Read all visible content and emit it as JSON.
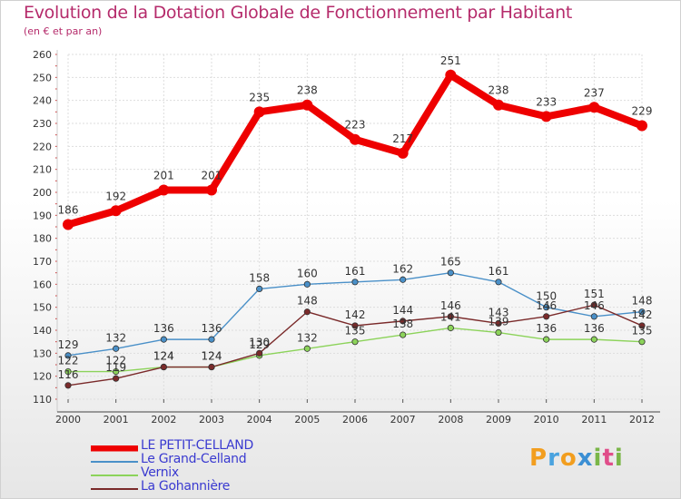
{
  "header": {
    "title": "Evolution de la Dotation Globale de Fonctionnement par Habitant",
    "subtitle": "(en € et par an)"
  },
  "brand": {
    "letters": [
      "P",
      "r",
      "o",
      "x",
      "i",
      "t",
      "i"
    ],
    "colors": [
      "#f29e1f",
      "#4aa3df",
      "#f29e1f",
      "#3b8fd4",
      "#7ab648",
      "#e04e8a",
      "#7ab648"
    ]
  },
  "chart_data": {
    "type": "line",
    "title": "Evolution de la Dotation Globale de Fonctionnement par Habitant",
    "subtitle": "(en € et par an)",
    "x": [
      "2000",
      "2001",
      "2002",
      "2003",
      "2004",
      "2005",
      "2006",
      "2007",
      "2008",
      "2009",
      "2010",
      "2011",
      "2012"
    ],
    "ylim": [
      110,
      260
    ],
    "yticks": [
      110,
      120,
      130,
      140,
      150,
      160,
      170,
      180,
      190,
      200,
      210,
      220,
      230,
      240,
      250,
      260
    ],
    "grid": true,
    "legend_position": "bottom-left",
    "series": [
      {
        "name": "LE PETIT-CELLAND",
        "color": "#ee0000",
        "values": [
          186,
          192,
          201,
          201,
          235,
          238,
          223,
          217,
          251,
          238,
          233,
          237,
          229
        ],
        "labels": [
          "186",
          "192",
          "201",
          "201",
          "235",
          "238",
          "223",
          "217",
          "251",
          "238",
          "233",
          "237",
          "229"
        ]
      },
      {
        "name": "Le Grand-Celland",
        "color": "#4a90c8",
        "values": [
          129,
          132,
          136,
          136,
          158,
          160,
          161,
          162,
          165,
          161,
          150,
          146,
          148
        ],
        "labels": [
          "129",
          "132",
          "136",
          "136",
          "158",
          "160",
          "161",
          "162",
          "165",
          "161",
          "150",
          "146",
          "148"
        ]
      },
      {
        "name": "Vernix",
        "color": "#8cd35a",
        "values": [
          122,
          122,
          124,
          124,
          129,
          132,
          135,
          138,
          141,
          139,
          136,
          136,
          135
        ],
        "labels": [
          "122",
          "122",
          "124",
          "124",
          "129",
          "132",
          "135",
          "138",
          "141",
          "139",
          "136",
          "136",
          "135"
        ]
      },
      {
        "name": "La Gohannière",
        "color": "#7a2a2a",
        "values": [
          116,
          119,
          124,
          124,
          130,
          148,
          142,
          144,
          146,
          143,
          146,
          151,
          142
        ],
        "labels": [
          "116",
          "119",
          "124",
          "124",
          "130",
          "148",
          "142",
          "144",
          "146",
          "143",
          "146",
          "151",
          "142"
        ]
      }
    ]
  }
}
